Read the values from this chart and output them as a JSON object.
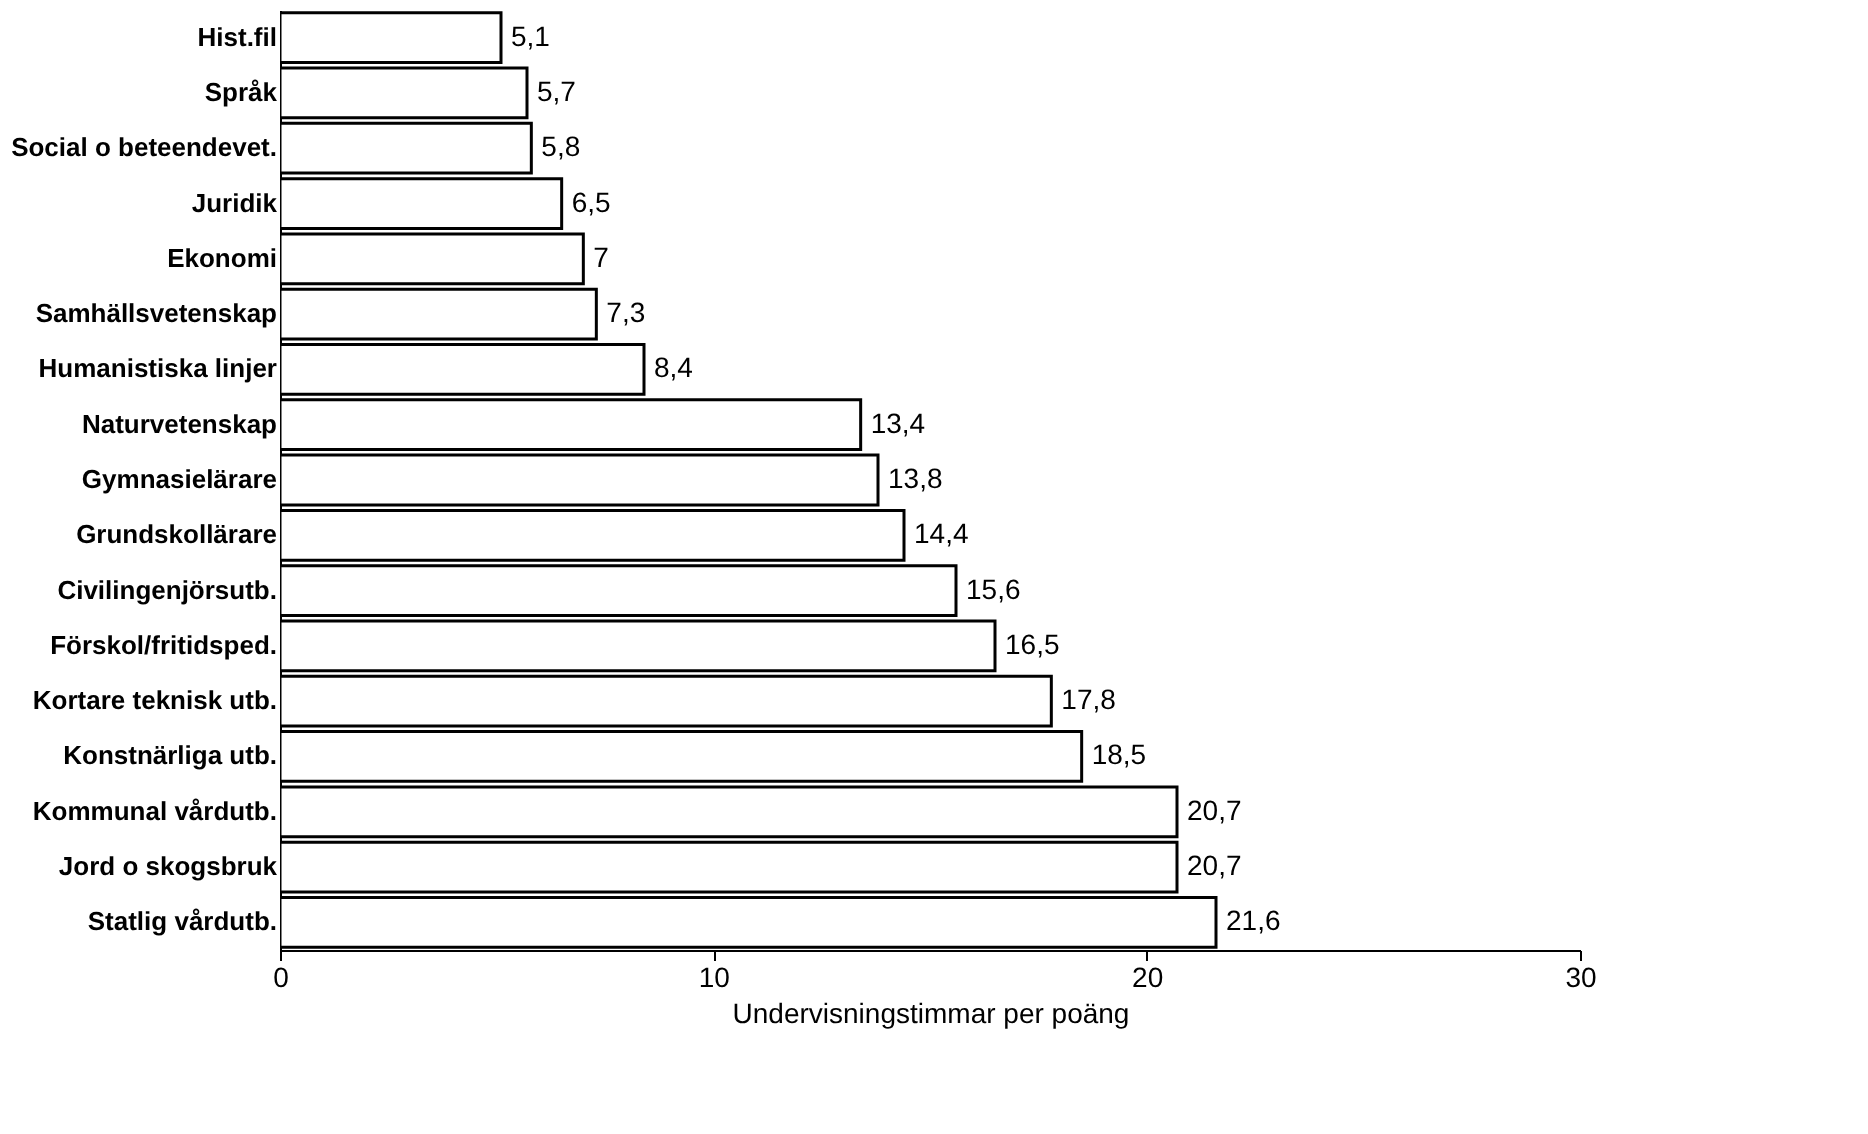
{
  "chart_data": {
    "type": "bar",
    "orientation": "horizontal",
    "xlabel": "Undervisningstimmar per poäng",
    "categories": [
      "Hist.fil",
      "Språk",
      "Social o beteendevet.",
      "Juridik",
      "Ekonomi",
      "Samhällsvetenskap",
      "Humanistiska linjer",
      "Naturvetenskap",
      "Gymnasielärare",
      "Grundskollärare",
      "Civilingenjörsutb.",
      "Förskol/fritidsped.",
      "Kortare teknisk utb.",
      "Konstnärliga utb.",
      "Kommunal vårdutb.",
      "Jord o skogsbruk",
      "Statlig vårdutb."
    ],
    "values": [
      5.1,
      5.7,
      5.8,
      6.5,
      7,
      7.3,
      8.4,
      13.4,
      13.8,
      14.4,
      15.6,
      16.5,
      17.8,
      18.5,
      20.7,
      20.7,
      21.6
    ],
    "value_labels": [
      "5,1",
      "5,7",
      "5,8",
      "6,5",
      "7",
      "7,3",
      "8,4",
      "13,4",
      "13,8",
      "14,4",
      "15,6",
      "16,5",
      "17,8",
      "18,5",
      "20,7",
      "20,7",
      "21,6"
    ],
    "color": "#ffffff",
    "xlim": [
      0,
      30
    ],
    "xticks": [
      0,
      10,
      20,
      30
    ],
    "grid": false
  }
}
